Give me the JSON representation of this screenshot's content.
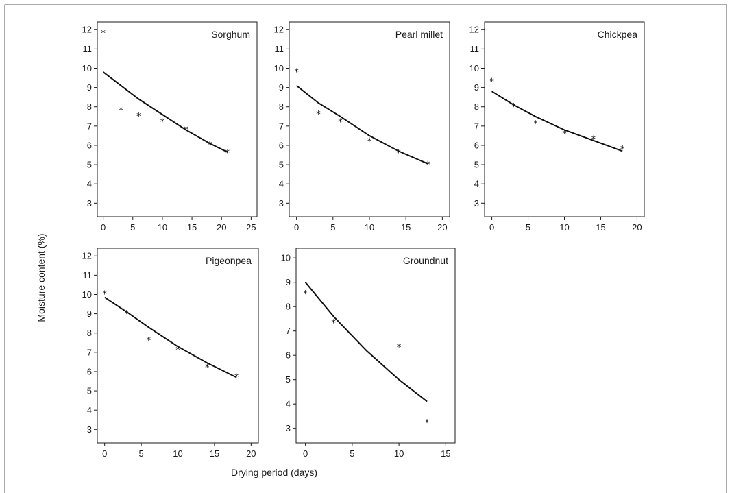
{
  "figure": {
    "ylabel": "Moisture content (%)",
    "xlabel": "Drying period (days)"
  },
  "chart_data": [
    {
      "type": "scatter",
      "title": "Sorghum",
      "xlim": [
        -1,
        26
      ],
      "ylim": [
        2.3,
        12.4
      ],
      "xticks": [
        0,
        5,
        10,
        15,
        20,
        25
      ],
      "yticks": [
        3,
        4,
        5,
        6,
        7,
        8,
        9,
        10,
        11,
        12
      ],
      "series": [
        {
          "kind": "observed",
          "marker": "*",
          "x": [
            0,
            3,
            6,
            10,
            14,
            18,
            21
          ],
          "y": [
            11.9,
            7.9,
            7.6,
            7.3,
            6.9,
            6.1,
            5.7
          ]
        },
        {
          "kind": "fitted",
          "x": [
            0,
            3,
            6,
            10,
            14,
            18,
            21
          ],
          "y": [
            9.8,
            9.1,
            8.4,
            7.6,
            6.8,
            6.1,
            5.65
          ]
        }
      ]
    },
    {
      "type": "scatter",
      "title": "Pearl millet",
      "xlim": [
        -1,
        21
      ],
      "ylim": [
        2.3,
        12.4
      ],
      "xticks": [
        0,
        5,
        10,
        15,
        20
      ],
      "yticks": [
        3,
        4,
        5,
        6,
        7,
        8,
        9,
        10,
        11,
        12
      ],
      "series": [
        {
          "kind": "observed",
          "marker": "*",
          "x": [
            0,
            3,
            6,
            10,
            14,
            18
          ],
          "y": [
            9.9,
            7.7,
            7.3,
            6.3,
            5.7,
            5.1
          ]
        },
        {
          "kind": "fitted",
          "x": [
            0,
            3,
            6,
            10,
            14,
            18
          ],
          "y": [
            9.1,
            8.2,
            7.5,
            6.5,
            5.7,
            5.05
          ]
        }
      ]
    },
    {
      "type": "scatter",
      "title": "Chickpea",
      "xlim": [
        -1,
        21
      ],
      "ylim": [
        2.3,
        12.4
      ],
      "xticks": [
        0,
        5,
        10,
        15,
        20
      ],
      "yticks": [
        3,
        4,
        5,
        6,
        7,
        8,
        9,
        10,
        11,
        12
      ],
      "series": [
        {
          "kind": "observed",
          "marker": "*",
          "x": [
            0,
            3,
            6,
            10,
            14,
            18
          ],
          "y": [
            9.4,
            8.1,
            7.2,
            6.7,
            6.4,
            5.9
          ]
        },
        {
          "kind": "fitted",
          "x": [
            0,
            3,
            6,
            10,
            14,
            18
          ],
          "y": [
            8.8,
            8.1,
            7.5,
            6.8,
            6.25,
            5.7
          ]
        }
      ]
    },
    {
      "type": "scatter",
      "title": "Pigeonpea",
      "xlim": [
        -1,
        21
      ],
      "ylim": [
        2.3,
        12.4
      ],
      "xticks": [
        0,
        5,
        10,
        15,
        20
      ],
      "yticks": [
        3,
        4,
        5,
        6,
        7,
        8,
        9,
        10,
        11,
        12
      ],
      "series": [
        {
          "kind": "observed",
          "marker": "*",
          "x": [
            0,
            3,
            6,
            10,
            14,
            18
          ],
          "y": [
            10.1,
            9.1,
            7.7,
            7.2,
            6.3,
            5.8
          ]
        },
        {
          "kind": "fitted",
          "x": [
            0,
            3,
            6,
            10,
            14,
            18
          ],
          "y": [
            9.85,
            9.1,
            8.3,
            7.3,
            6.45,
            5.7
          ]
        }
      ]
    },
    {
      "type": "scatter",
      "title": "Groundnut",
      "xlim": [
        -1,
        16
      ],
      "ylim": [
        2.4,
        10.4
      ],
      "xticks": [
        0,
        5,
        10,
        15
      ],
      "yticks": [
        3,
        4,
        5,
        6,
        7,
        8,
        9,
        10
      ],
      "series": [
        {
          "kind": "observed",
          "marker": "*",
          "x": [
            0,
            3,
            10,
            13
          ],
          "y": [
            8.6,
            7.4,
            6.4,
            3.3
          ]
        },
        {
          "kind": "fitted",
          "x": [
            0,
            3,
            6.5,
            10,
            13
          ],
          "y": [
            9.0,
            7.6,
            6.2,
            5.0,
            4.1
          ]
        }
      ]
    }
  ]
}
